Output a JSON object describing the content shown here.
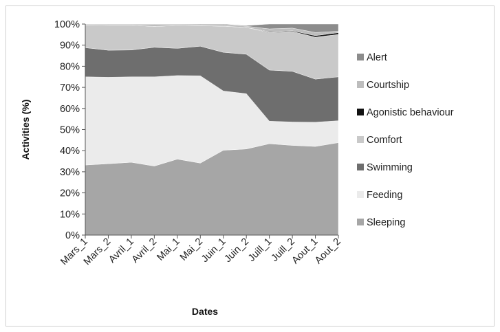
{
  "chart_data": {
    "type": "area",
    "stacked": true,
    "percent": true,
    "categories": [
      "Mars_1",
      "Mars_2",
      "Avril_1",
      "Avril_2",
      "Mai_1",
      "Mai_2",
      "Juin_1",
      "Juin_2",
      "Juill_1",
      "Juill_2",
      "Aout_1",
      "Aout_2"
    ],
    "series": [
      {
        "name": "Sleeping",
        "color": "#a6a6a6",
        "values": [
          33.2,
          33.8,
          34.5,
          32.7,
          36.0,
          34.1,
          40.2,
          40.8,
          43.3,
          42.5,
          42.0,
          43.8
        ]
      },
      {
        "name": "Feeding",
        "color": "#ebebeb",
        "values": [
          41.8,
          41.0,
          40.5,
          42.3,
          39.6,
          41.4,
          28.1,
          26.2,
          10.7,
          11.1,
          11.5,
          10.4
        ]
      },
      {
        "name": "Swimming",
        "color": "#6e6e6e",
        "values": [
          13.8,
          12.8,
          12.7,
          14.0,
          12.9,
          14.0,
          18.3,
          18.7,
          24.2,
          24.0,
          20.4,
          20.8
        ]
      },
      {
        "name": "Comfort",
        "color": "#c9c9c9",
        "values": [
          10.7,
          11.8,
          11.7,
          9.9,
          10.8,
          9.7,
          12.4,
          12.7,
          17.8,
          18.9,
          19.9,
          20.1
        ]
      },
      {
        "name": "Agonistic behaviour",
        "color": "#111111",
        "values": [
          0.0,
          0.0,
          0.0,
          0.0,
          0.0,
          0.0,
          0.0,
          0.0,
          0.3,
          0.3,
          0.7,
          0.8
        ]
      },
      {
        "name": "Courtship",
        "color": "#bdbdbd",
        "values": [
          0.3,
          0.4,
          0.4,
          0.9,
          0.5,
          0.5,
          0.7,
          0.6,
          1.4,
          1.3,
          1.5,
          0.7
        ]
      },
      {
        "name": "Alert",
        "color": "#8c8c8c",
        "values": [
          0.2,
          0.2,
          0.2,
          0.2,
          0.2,
          0.3,
          0.3,
          0.3,
          2.3,
          1.9,
          4.0,
          3.4
        ]
      }
    ],
    "legend_order": [
      "Alert",
      "Courtship",
      "Agonistic behaviour",
      "Comfort",
      "Swimming",
      "Feeding",
      "Sleeping"
    ],
    "y_ticks": [
      "0%",
      "10%",
      "20%",
      "30%",
      "40%",
      "50%",
      "60%",
      "70%",
      "80%",
      "90%",
      "100%"
    ],
    "ylim": [
      0,
      100
    ],
    "xlabel": "Dates",
    "ylabel": "Activities (%)",
    "legend_position": "right",
    "grid": false
  }
}
